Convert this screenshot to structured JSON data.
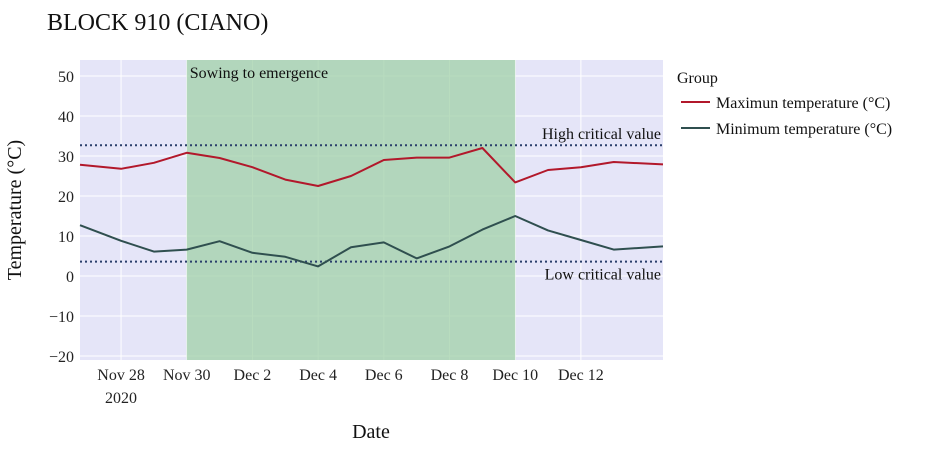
{
  "chart_data": {
    "type": "line",
    "title": "BLOCK 910 (CIANO)",
    "xlabel": "Date",
    "ylabel": "Temperature (°C)",
    "ylim": [
      -21,
      54
    ],
    "xlim": [
      "2020-11-26T18:00",
      "2020-12-14T12:00"
    ],
    "y_ticks": [
      -20,
      -10,
      0,
      10,
      20,
      30,
      40,
      50
    ],
    "x_ticks": [
      {
        "date": "2020-11-28",
        "label": "Nov 28",
        "sublabel": "2020"
      },
      {
        "date": "2020-11-30",
        "label": "Nov 30",
        "sublabel": ""
      },
      {
        "date": "2020-12-02",
        "label": "Dec 2",
        "sublabel": ""
      },
      {
        "date": "2020-12-04",
        "label": "Dec 4",
        "sublabel": ""
      },
      {
        "date": "2020-12-06",
        "label": "Dec 6",
        "sublabel": ""
      },
      {
        "date": "2020-12-08",
        "label": "Dec 8",
        "sublabel": ""
      },
      {
        "date": "2020-12-10",
        "label": "Dec 10",
        "sublabel": ""
      },
      {
        "date": "2020-12-12",
        "label": "Dec 12",
        "sublabel": ""
      }
    ],
    "x": [
      "2020-11-26T18:00",
      "2020-11-28",
      "2020-11-29",
      "2020-11-30",
      "2020-12-01",
      "2020-12-02",
      "2020-12-03",
      "2020-12-04",
      "2020-12-05",
      "2020-12-06",
      "2020-12-07",
      "2020-12-08",
      "2020-12-09",
      "2020-12-10",
      "2020-12-11",
      "2020-12-12",
      "2020-12-13",
      "2020-12-14T12:00"
    ],
    "series": [
      {
        "name": "Maximun temperature (°C)",
        "color": "#b2182b",
        "values": [
          27.8,
          26.8,
          28.3,
          30.8,
          29.5,
          27.2,
          24.1,
          22.5,
          25.0,
          29.0,
          29.6,
          29.6,
          32.0,
          23.4,
          26.5,
          27.2,
          28.5,
          27.9
        ]
      },
      {
        "name": "Minimum  temperature (°C)",
        "color": "#2f4f4f",
        "values": [
          12.7,
          8.8,
          6.1,
          6.6,
          8.7,
          5.8,
          4.8,
          2.4,
          7.2,
          8.4,
          4.4,
          7.4,
          11.6,
          15.0,
          11.4,
          9.0,
          6.6,
          7.4
        ]
      }
    ],
    "shaded_region": {
      "x0": "2020-11-30",
      "x1": "2020-12-10",
      "label": "Sowing to emergence",
      "color": "#a0d0a8"
    },
    "reference_lines": [
      {
        "y": 32.7,
        "label": "High critical value",
        "color": "#2a3f6b"
      },
      {
        "y": 3.6,
        "label": "Low critical value",
        "color": "#2a3f6b"
      }
    ],
    "legend": {
      "title": "Group",
      "placement": "right"
    },
    "grid": true,
    "plot_bg": "#e5e5f8"
  }
}
